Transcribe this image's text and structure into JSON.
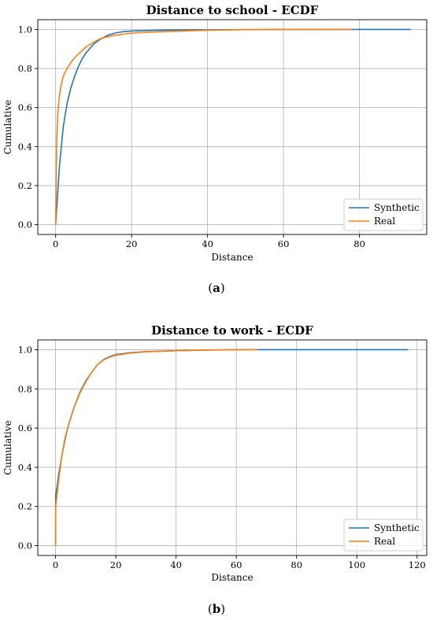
{
  "chart_data": [
    {
      "type": "line",
      "title": "Distance to school - ECDF",
      "xlabel": "Distance",
      "ylabel": "Cumulative",
      "xlim": [
        -4.7,
        97.7
      ],
      "ylim": [
        -0.05,
        1.05
      ],
      "xticks": [
        0,
        20,
        40,
        60,
        80
      ],
      "yticks": [
        0.0,
        0.2,
        0.4,
        0.6,
        0.8,
        1.0
      ],
      "grid": true,
      "legend_position": "lower-right",
      "caption": {
        "open": "(",
        "letter": "a",
        "close": ")"
      },
      "series": [
        {
          "name": "Synthetic",
          "color": "#1f77b4",
          "x": [
            0,
            0.5,
            1,
            2,
            3,
            4,
            5,
            6,
            7,
            8,
            10,
            12,
            14,
            16,
            18,
            20,
            25,
            30,
            40,
            50,
            60,
            70,
            80,
            93.5
          ],
          "y": [
            0,
            0.15,
            0.3,
            0.5,
            0.62,
            0.7,
            0.76,
            0.81,
            0.85,
            0.88,
            0.925,
            0.953,
            0.972,
            0.983,
            0.989,
            0.992,
            0.995,
            0.997,
            0.998,
            0.999,
            1.0,
            1.0,
            1.0,
            1.0
          ]
        },
        {
          "name": "Real",
          "color": "#ff7f0e",
          "x": [
            0,
            0.3,
            0.6,
            1,
            1.5,
            2,
            3,
            4,
            5,
            6,
            8,
            10,
            12,
            15,
            18,
            20,
            25,
            30,
            35,
            40,
            50,
            60,
            78
          ],
          "y": [
            0,
            0.45,
            0.58,
            0.66,
            0.72,
            0.76,
            0.8,
            0.83,
            0.855,
            0.875,
            0.91,
            0.935,
            0.955,
            0.968,
            0.976,
            0.981,
            0.986,
            0.99,
            0.993,
            0.996,
            0.999,
            1.0,
            1.0
          ]
        }
      ]
    },
    {
      "type": "line",
      "title": "Distance to work - ECDF",
      "xlabel": "Distance",
      "ylabel": "Cumulative",
      "xlim": [
        -5.9,
        123.2
      ],
      "ylim": [
        -0.05,
        1.05
      ],
      "xticks": [
        0,
        20,
        40,
        60,
        80,
        100,
        120
      ],
      "yticks": [
        0.0,
        0.2,
        0.4,
        0.6,
        0.8,
        1.0
      ],
      "grid": true,
      "legend_position": "lower-right",
      "caption": {
        "open": "(",
        "letter": "b",
        "close": ")"
      },
      "series": [
        {
          "name": "Synthetic",
          "color": "#1f77b4",
          "x": [
            0,
            0.05,
            0.5,
            1,
            2,
            3,
            4,
            6,
            8,
            10,
            12,
            14,
            16,
            18,
            20,
            25,
            30,
            40,
            50,
            60,
            80,
            100,
            117
          ],
          "y": [
            0,
            0.26,
            0.3,
            0.36,
            0.45,
            0.53,
            0.6,
            0.7,
            0.78,
            0.84,
            0.885,
            0.925,
            0.95,
            0.965,
            0.975,
            0.985,
            0.99,
            0.995,
            0.998,
            1.0,
            1.0,
            1.0,
            1.0
          ]
        },
        {
          "name": "Real",
          "color": "#ff7f0e",
          "x": [
            0,
            0.05,
            0.5,
            1,
            2,
            3,
            4,
            6,
            8,
            10,
            12,
            14,
            16,
            18,
            20,
            25,
            30,
            40,
            50,
            60,
            67
          ],
          "y": [
            0,
            0.2,
            0.26,
            0.33,
            0.45,
            0.54,
            0.6,
            0.7,
            0.775,
            0.835,
            0.885,
            0.925,
            0.948,
            0.962,
            0.972,
            0.983,
            0.989,
            0.995,
            0.998,
            1.0,
            1.0
          ]
        }
      ]
    }
  ]
}
